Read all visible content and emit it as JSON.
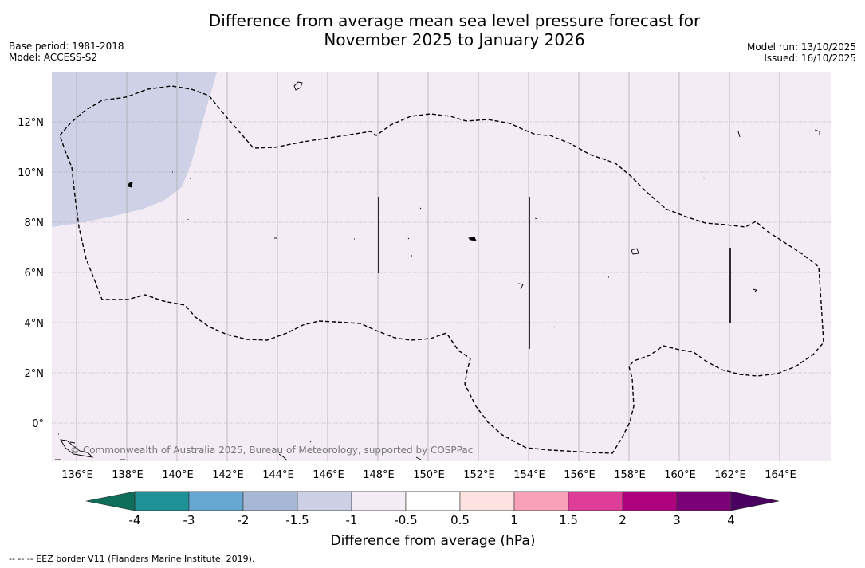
{
  "header": {
    "title_line1": "Difference from average mean sea level pressure forecast for",
    "title_line2": "November 2025 to January 2026",
    "base_period": "Base period: 1981-2018",
    "model": "Model: ACCESS-S2",
    "model_run": "Model run: 13/10/2025",
    "issued": "Issued: 16/10/2025"
  },
  "map": {
    "lon_labels": [
      "136°E",
      "138°E",
      "140°E",
      "142°E",
      "144°E",
      "146°E",
      "148°E",
      "150°E",
      "152°E",
      "154°E",
      "156°E",
      "158°E",
      "160°E",
      "162°E",
      "164°E"
    ],
    "lat_labels": [
      "12°N",
      "10°N",
      "8°N",
      "6°N",
      "4°N",
      "2°N",
      "0°"
    ],
    "copyright": "© Commonwealth of Australia 2025, Bureau of Meteorology, supported by COSPPac",
    "colors": {
      "background_fill": "#f4ecf5",
      "negative_anomaly_fill": "#cfd2e6",
      "eez_line": "#000000"
    }
  },
  "colorbar": {
    "title": "Difference from average (hPa)",
    "tick_labels": [
      "-4",
      "-3",
      "-2",
      "-1.5",
      "-1",
      "-0.5",
      "0.5",
      "1",
      "1.5",
      "2",
      "3",
      "4"
    ],
    "colors": [
      "#1e9297",
      "#66a8d2",
      "#a7b8d6",
      "#cdcfe5",
      "#f4ecf5",
      "#ffffff",
      "#fde2e2",
      "#f9a1b8",
      "#de3d98",
      "#ae017e",
      "#7a0177"
    ],
    "extend_low_color": "#0e6e5a",
    "extend_high_color": "#4a0060"
  },
  "footnote": "--  --  -- EEZ border V11 (Flanders Marine Institute, 2019)."
}
